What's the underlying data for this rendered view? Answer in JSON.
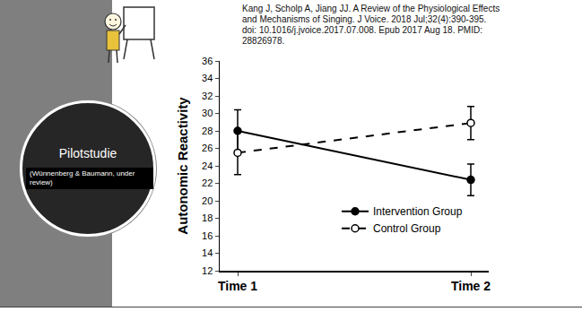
{
  "slide": {
    "citation": [
      "Kang J, Scholp A, Jiang JJ. A Review of the Physiological Effects",
      "and Mechanisms of Singing. J Voice. 2018 Jul;32(4):390-395.",
      "doi: 10.1016/j.jvoice.2017.07.008. Epub 2017 Aug 18. PMID:",
      "28826978."
    ],
    "circle_title": "Pilotstudie",
    "circle_note": "(Wünnenberg & Baumann, under review)"
  },
  "chart_data": {
    "type": "line",
    "ylabel": "Autonomic Reactivity",
    "categories": [
      "Time 1",
      "Time 2"
    ],
    "series": [
      {
        "name": "Intervention Group",
        "color": "#000000",
        "values": [
          28.0,
          22.4
        ],
        "errors": [
          2.4,
          1.8
        ],
        "line_style": "solid",
        "marker": "filled"
      },
      {
        "name": "Control Group",
        "color": "#000000",
        "values": [
          25.5,
          28.9
        ],
        "errors": [
          2.5,
          1.9
        ],
        "line_style": "dashed",
        "marker": "open"
      }
    ],
    "ylim": [
      12,
      36
    ],
    "yticks": [
      12,
      14,
      16,
      18,
      20,
      22,
      24,
      26,
      28,
      30,
      32,
      34,
      36
    ],
    "grid": false,
    "legend": "lower right"
  }
}
